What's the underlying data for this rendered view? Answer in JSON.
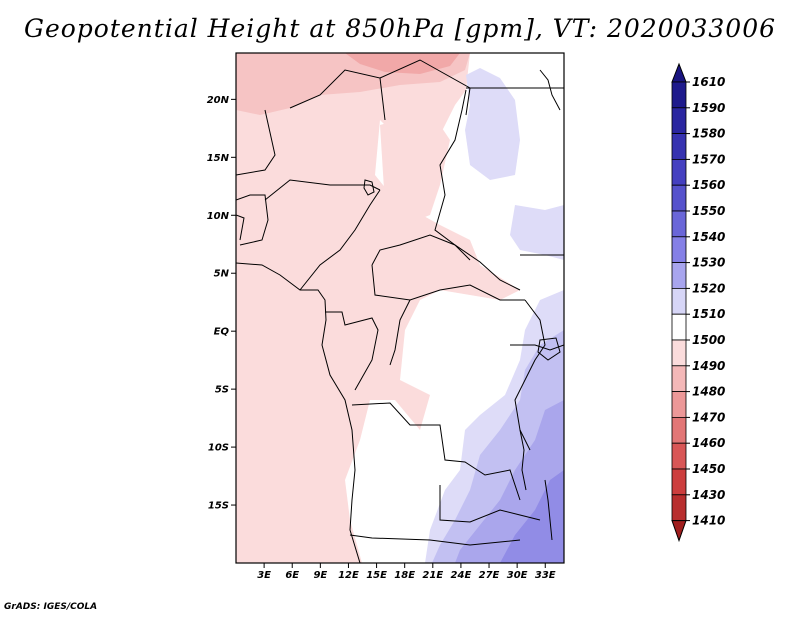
{
  "title": "Geopotential Height at 850hPa [gpm], VT: 2020033006",
  "credit": "GrADS: IGES/COLA",
  "map": {
    "lon_range": [
      0,
      35
    ],
    "lat_range": [
      -20,
      24
    ],
    "lon_ticks": [
      {
        "value": 3,
        "label": "3E"
      },
      {
        "value": 6,
        "label": "6E"
      },
      {
        "value": 9,
        "label": "9E"
      },
      {
        "value": 12,
        "label": "12E"
      },
      {
        "value": 15,
        "label": "15E"
      },
      {
        "value": 18,
        "label": "18E"
      },
      {
        "value": 21,
        "label": "21E"
      },
      {
        "value": 24,
        "label": "24E"
      },
      {
        "value": 27,
        "label": "27E"
      },
      {
        "value": 30,
        "label": "30E"
      },
      {
        "value": 33,
        "label": "33E"
      }
    ],
    "lat_ticks": [
      {
        "value": 20,
        "label": "20N"
      },
      {
        "value": 15,
        "label": "15N"
      },
      {
        "value": 10,
        "label": "10N"
      },
      {
        "value": 5,
        "label": "5N"
      },
      {
        "value": 0,
        "label": "EQ"
      },
      {
        "value": -5,
        "label": "5S"
      },
      {
        "value": -10,
        "label": "10S"
      },
      {
        "value": -15,
        "label": "15S"
      }
    ]
  },
  "colorbar": {
    "levels": [
      {
        "label": "1610",
        "color": "#1e1a8c"
      },
      {
        "label": "1590",
        "color": "#2a26a0"
      },
      {
        "label": "1580",
        "color": "#3632b0"
      },
      {
        "label": "1570",
        "color": "#4540c0"
      },
      {
        "label": "1560",
        "color": "#5652cc"
      },
      {
        "label": "1550",
        "color": "#6a66d8"
      },
      {
        "label": "1540",
        "color": "#8580e6"
      },
      {
        "label": "1530",
        "color": "#a8a5ee"
      },
      {
        "label": "1520",
        "color": "#d7d6f7"
      },
      {
        "label": "1510",
        "color": "#ffffff"
      },
      {
        "label": "1500",
        "color": "#fbdcdc"
      },
      {
        "label": "1490",
        "color": "#f4b8b8"
      },
      {
        "label": "1480",
        "color": "#ec9898"
      },
      {
        "label": "1470",
        "color": "#e27676"
      },
      {
        "label": "1460",
        "color": "#d85656"
      },
      {
        "label": "1450",
        "color": "#cc3e3e"
      },
      {
        "label": "1430",
        "color": "#b82e2e"
      },
      {
        "label": "1410",
        "color": "#a01e1e"
      }
    ],
    "top_arrow_color": "#1a1480",
    "bottom_arrow_color": "#a01e1e"
  }
}
